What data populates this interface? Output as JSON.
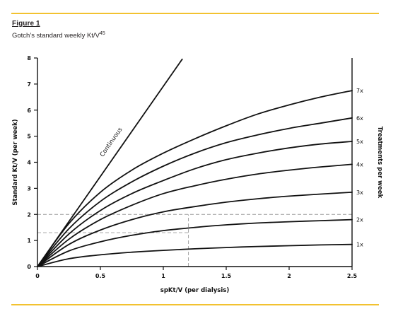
{
  "colors": {
    "accent_rule": "#f2c230",
    "ink": "#111111"
  },
  "figure": {
    "label": "Figure 1",
    "caption_text": "Gotch’s standard weekly Kt/V",
    "caption_ref": "45"
  },
  "chart_data": {
    "type": "line",
    "xlabel": "spKt/V (per dialysis)",
    "ylabel": "Standard Kt/V (per week)",
    "y2label": "Treatments per week",
    "xlim": [
      0,
      2.5
    ],
    "ylim": [
      0,
      8
    ],
    "x_ticks": [
      {
        "value": 0,
        "label": "0"
      },
      {
        "value": 0.5,
        "label": "0.5"
      },
      {
        "value": 1,
        "label": "1"
      },
      {
        "value": 1.5,
        "label": "1.5"
      },
      {
        "value": 2,
        "label": "2"
      },
      {
        "value": 2.5,
        "label": "2.5"
      }
    ],
    "y_ticks": [
      {
        "value": 0,
        "label": "0"
      },
      {
        "value": 1,
        "label": "1"
      },
      {
        "value": 2,
        "label": "2"
      },
      {
        "value": 3,
        "label": "3"
      },
      {
        "value": 4,
        "label": "4"
      },
      {
        "value": 5,
        "label": "5"
      },
      {
        "value": 6,
        "label": "6"
      },
      {
        "value": 7,
        "label": "7"
      },
      {
        "value": 8,
        "label": "8"
      }
    ],
    "reference_lines": [
      {
        "x": [
          0,
          2.5
        ],
        "y": [
          2.0,
          2.0
        ]
      },
      {
        "x": [
          0,
          1.2
        ],
        "y": [
          1.3,
          1.3
        ]
      },
      {
        "x": [
          1.2,
          1.2
        ],
        "y": [
          0,
          2.0
        ]
      }
    ],
    "series": [
      {
        "name": "Continuous",
        "label_at": {
          "x": 0.52,
          "y": 4.2
        },
        "x": [
          0,
          1.15
        ],
        "y": [
          0,
          7.95
        ]
      },
      {
        "name": "7x",
        "x": [
          0,
          0.25,
          0.5,
          0.75,
          1.0,
          1.25,
          1.5,
          1.75,
          2.0,
          2.25,
          2.5
        ],
        "y": [
          0,
          1.65,
          2.85,
          3.7,
          4.35,
          4.9,
          5.4,
          5.85,
          6.2,
          6.5,
          6.75
        ]
      },
      {
        "name": "6x",
        "x": [
          0,
          0.25,
          0.5,
          0.75,
          1.0,
          1.25,
          1.5,
          1.75,
          2.0,
          2.25,
          2.5
        ],
        "y": [
          0,
          1.45,
          2.5,
          3.25,
          3.85,
          4.35,
          4.75,
          5.05,
          5.3,
          5.5,
          5.7
        ]
      },
      {
        "name": "5x",
        "x": [
          0,
          0.25,
          0.5,
          0.75,
          1.0,
          1.25,
          1.5,
          1.75,
          2.0,
          2.25,
          2.5
        ],
        "y": [
          0,
          1.25,
          2.15,
          2.8,
          3.3,
          3.75,
          4.1,
          4.35,
          4.55,
          4.7,
          4.8
        ]
      },
      {
        "name": "4x",
        "x": [
          0,
          0.25,
          0.5,
          0.75,
          1.0,
          1.25,
          1.5,
          1.75,
          2.0,
          2.25,
          2.5
        ],
        "y": [
          0,
          1.05,
          1.8,
          2.35,
          2.8,
          3.1,
          3.35,
          3.55,
          3.7,
          3.82,
          3.92
        ]
      },
      {
        "name": "3x",
        "x": [
          0,
          0.25,
          0.5,
          0.75,
          1.0,
          1.25,
          1.5,
          1.75,
          2.0,
          2.25,
          2.5
        ],
        "y": [
          0,
          0.85,
          1.4,
          1.8,
          2.1,
          2.3,
          2.47,
          2.6,
          2.7,
          2.78,
          2.85
        ]
      },
      {
        "name": "2x",
        "x": [
          0,
          0.25,
          0.5,
          0.75,
          1.0,
          1.25,
          1.5,
          1.75,
          2.0,
          2.25,
          2.5
        ],
        "y": [
          0,
          0.6,
          0.95,
          1.2,
          1.38,
          1.5,
          1.6,
          1.67,
          1.72,
          1.76,
          1.8
        ]
      },
      {
        "name": "1x",
        "x": [
          0,
          0.25,
          0.5,
          0.75,
          1.0,
          1.25,
          1.5,
          1.75,
          2.0,
          2.25,
          2.5
        ],
        "y": [
          0,
          0.3,
          0.45,
          0.55,
          0.62,
          0.68,
          0.73,
          0.77,
          0.8,
          0.83,
          0.85
        ]
      }
    ]
  }
}
